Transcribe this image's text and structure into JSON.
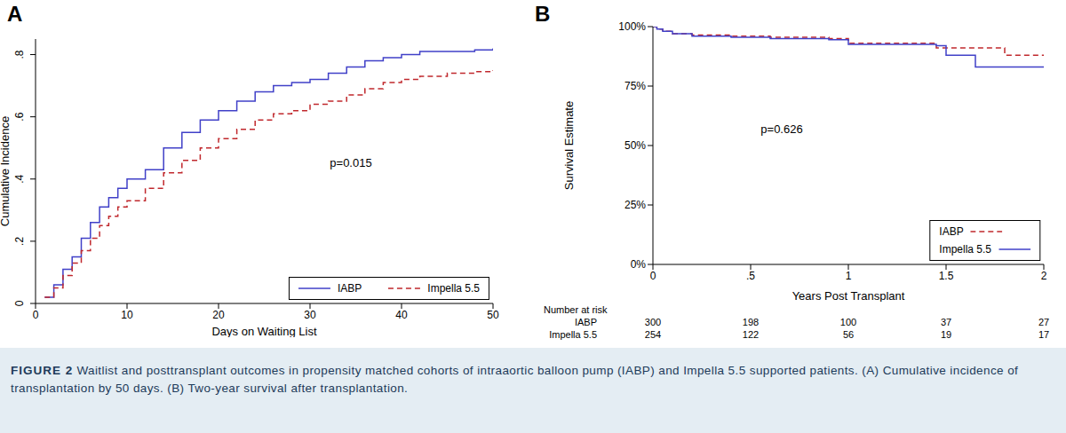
{
  "caption": {
    "label": "FIGURE 2",
    "text": "Waitlist and posttransplant outcomes in propensity matched cohorts of intraaortic balloon pump (IABP) and Impella 5.5 supported patients. (A) Cumulative incidence of transplantation by 50 days. (B) Two-year survival after transplantation."
  },
  "chart_data": [
    {
      "panel": "A",
      "type": "step",
      "x_label": "Days on Waiting List",
      "y_label": "Cumulative Incidence",
      "annotations": [
        "p=0.015"
      ],
      "x": [
        1,
        2,
        3,
        4,
        5,
        6,
        7,
        8,
        9,
        10,
        12,
        14,
        16,
        18,
        20,
        22,
        24,
        26,
        28,
        30,
        32,
        34,
        36,
        38,
        40,
        42,
        45,
        48,
        50
      ],
      "xlim": [
        0,
        50
      ],
      "xticks": [
        0,
        10,
        20,
        30,
        40,
        50
      ],
      "ylim": [
        0,
        0.85
      ],
      "yticks": [
        0,
        {
          "value": 0.2,
          "label": ".2"
        },
        {
          "value": 0.4,
          "label": ".4"
        },
        {
          "value": 0.6,
          "label": ".6"
        },
        {
          "value": 0.8,
          "label": ".8"
        }
      ],
      "grid": false,
      "legend": "lower right",
      "series": [
        {
          "name": "IABP",
          "color": "#4040c8",
          "line_style": "solid",
          "values": [
            0.02,
            0.06,
            0.11,
            0.15,
            0.21,
            0.26,
            0.31,
            0.34,
            0.37,
            0.4,
            0.43,
            0.5,
            0.55,
            0.59,
            0.62,
            0.65,
            0.68,
            0.7,
            0.71,
            0.72,
            0.74,
            0.76,
            0.78,
            0.79,
            0.8,
            0.81,
            0.81,
            0.815,
            0.82
          ]
        },
        {
          "name": "Impella 5.5",
          "color": "#c0282d",
          "line_style": "dashed",
          "values": [
            0.02,
            0.05,
            0.09,
            0.13,
            0.17,
            0.21,
            0.25,
            0.28,
            0.31,
            0.33,
            0.37,
            0.42,
            0.46,
            0.5,
            0.53,
            0.56,
            0.59,
            0.61,
            0.62,
            0.64,
            0.65,
            0.67,
            0.69,
            0.71,
            0.72,
            0.73,
            0.74,
            0.745,
            0.75
          ]
        }
      ]
    },
    {
      "panel": "B",
      "type": "step",
      "x_label": "Years Post Transplant",
      "y_label": "Survival Estimate",
      "annotations": [
        "p=0.626"
      ],
      "x": [
        0,
        0.02,
        0.05,
        0.1,
        0.2,
        0.4,
        0.6,
        0.9,
        1.0,
        1.2,
        1.45,
        1.5,
        1.65,
        1.8,
        2
      ],
      "xlim": [
        0,
        2
      ],
      "xticks": [
        0,
        {
          "value": 0.5,
          "label": ".5"
        },
        1,
        1.5,
        2
      ],
      "ylim": [
        0,
        100
      ],
      "yticks": [
        {
          "value": 0,
          "label": "0%"
        },
        {
          "value": 25,
          "label": "25%"
        },
        {
          "value": 50,
          "label": "50%"
        },
        {
          "value": 75,
          "label": "75%"
        },
        {
          "value": 100,
          "label": "100%"
        }
      ],
      "grid": false,
      "legend": "lower right",
      "series": [
        {
          "name": "IABP",
          "color": "#c0282d",
          "line_style": "dashed",
          "values": [
            100,
            99,
            98,
            97,
            96.5,
            96,
            95.5,
            95,
            93,
            93,
            91,
            91,
            91,
            88,
            88
          ]
        },
        {
          "name": "Impella 5.5",
          "color": "#4040c8",
          "line_style": "solid",
          "values": [
            100,
            99,
            98,
            97,
            96,
            95.5,
            95,
            94.5,
            92.5,
            92.5,
            92,
            88,
            83,
            83,
            83
          ]
        }
      ],
      "risk_table": {
        "title": "Number at risk",
        "x": [
          0,
          0.5,
          1,
          1.5,
          2
        ],
        "rows": [
          {
            "name": "IABP",
            "values": [
              300,
              198,
              100,
              37,
              27
            ]
          },
          {
            "name": "Impella 5.5",
            "values": [
              254,
              122,
              56,
              19,
              17
            ]
          }
        ]
      }
    }
  ]
}
